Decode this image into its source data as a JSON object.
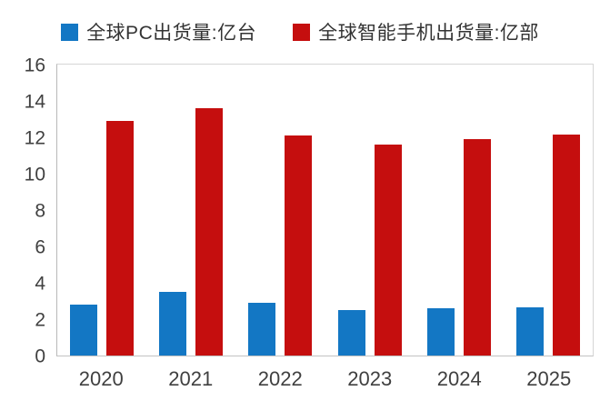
{
  "chart_data": {
    "type": "bar",
    "title": "",
    "categories": [
      "2020",
      "2021",
      "2022",
      "2023",
      "2024",
      "2025"
    ],
    "series": [
      {
        "id": "pc",
        "name": "全球PC出货量:亿台",
        "color": "#1377C4",
        "values": [
          2.8,
          3.5,
          2.9,
          2.5,
          2.6,
          2.65
        ]
      },
      {
        "id": "smartphone",
        "name": "全球智能手机出货量:亿部",
        "color": "#C50E0E",
        "values": [
          12.9,
          13.6,
          12.1,
          11.6,
          11.9,
          12.15
        ]
      }
    ],
    "ylim": [
      0,
      16
    ],
    "ytick_step": 2,
    "ytick_labels": [
      "0",
      "2",
      "4",
      "6",
      "8",
      "10",
      "12",
      "14",
      "16"
    ],
    "xlabel": "",
    "ylabel": "",
    "grid": false,
    "legend_position": "top"
  }
}
